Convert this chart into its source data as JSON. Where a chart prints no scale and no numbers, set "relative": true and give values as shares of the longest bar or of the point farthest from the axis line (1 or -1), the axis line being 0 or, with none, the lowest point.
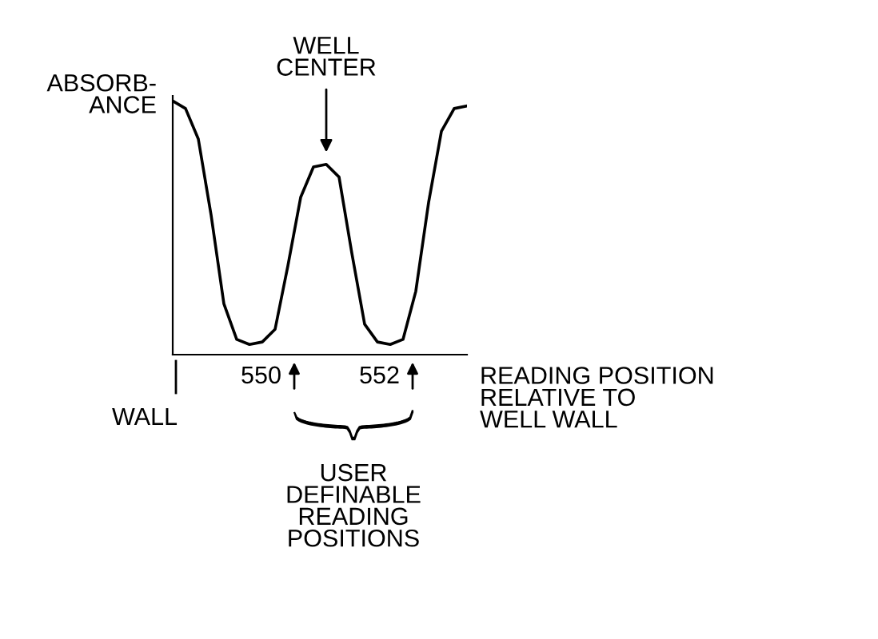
{
  "chart_data": {
    "type": "line",
    "relative": true,
    "ylabel": "ABSORB-\nANCE",
    "xlabel": "READING POSITION\nRELATIVE TO\nWELL WALL",
    "categories": [
      null,
      null,
      null,
      null,
      null,
      null,
      null,
      null,
      null,
      null,
      null,
      null,
      null,
      null,
      null,
      null,
      null,
      null,
      null,
      null,
      null,
      null,
      null,
      null
    ],
    "series": [
      {
        "color": "#000000",
        "values": [
          1,
          0.97,
          0.85,
          0.55,
          0.2,
          0.06,
          0.04,
          0.05,
          0.1,
          0.35,
          0.62,
          0.74,
          0.75,
          0.7,
          0.4,
          0.12,
          0.05,
          0.04,
          0.06,
          0.25,
          0.6,
          0.88,
          0.97,
          0.98
        ]
      }
    ],
    "annotations": [
      "WELL\nCENTER",
      "550",
      "552",
      "WALL",
      "USER\nDEFINABLE\nREADING\nPOSITIONS"
    ],
    "grid": false,
    "legend": false,
    "marker": "none",
    "line_style": "solid"
  }
}
